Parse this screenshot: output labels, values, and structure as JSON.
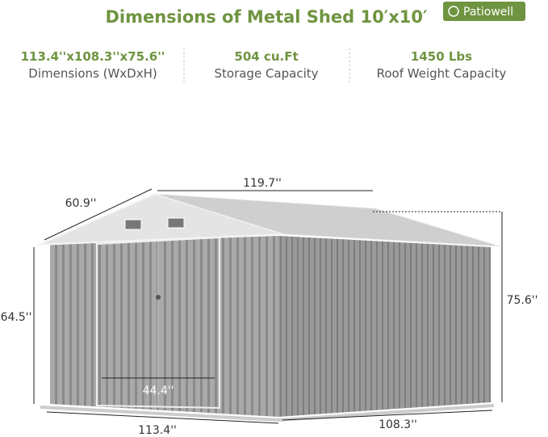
{
  "header": {
    "title": "Dimensions of Metal Shed 10′x10′",
    "brand": "Patiowell"
  },
  "specs": [
    {
      "value": "113.4''x108.3''x75.6''",
      "label": "Dimensions (WxDxH)"
    },
    {
      "value": "504 cu.Ft",
      "label": "Storage Capacity"
    },
    {
      "value": "1450 Lbs",
      "label": "Roof Weight Capacity"
    }
  ],
  "dimensions": {
    "length_top": "119.7''",
    "depth_top": "60.9''",
    "wall_height": "64.5''",
    "peak_height": "75.6''",
    "door_width": "44.4''",
    "width_bottom": "113.4''",
    "depth_bottom": "108.3''"
  }
}
